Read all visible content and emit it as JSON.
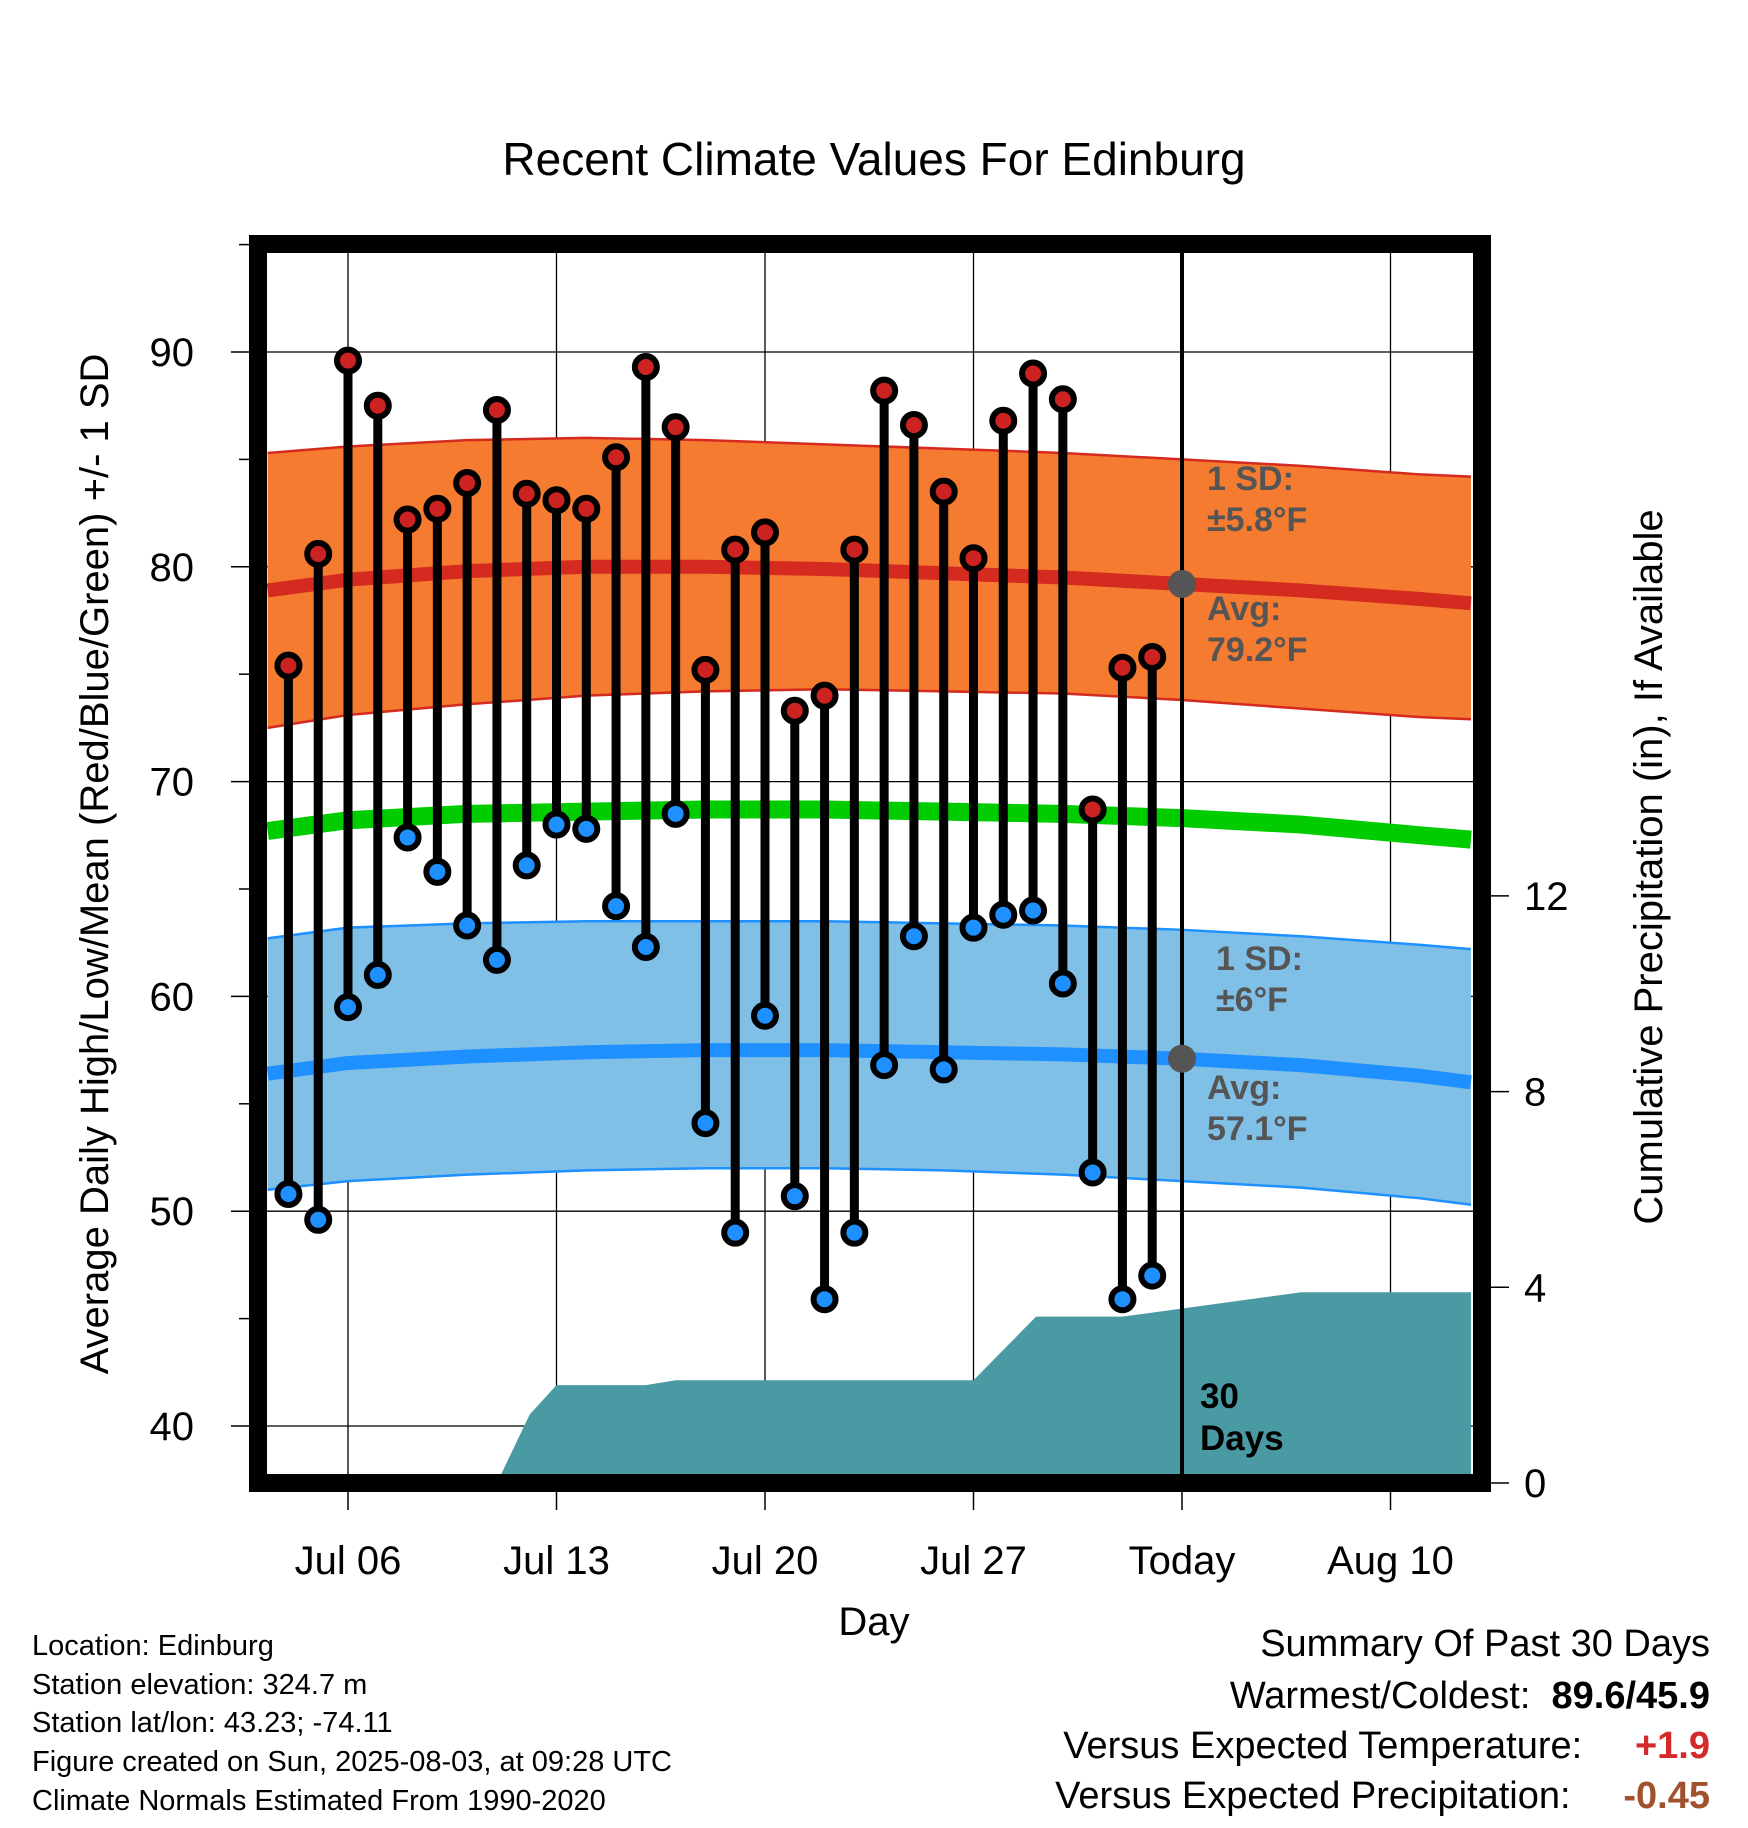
{
  "chart_data": {
    "type": "line",
    "title": "Recent Climate Values For Edinburg",
    "xlabel": "Day",
    "ylabel_left": "Average Daily High/Low/Mean (Red/Blue/Green) +/- 1 SD",
    "ylabel_right": "Cumulative Precipitation (in), If Available",
    "ylim_left": [
      38,
      95
    ],
    "ylim_right": [
      0,
      30
    ],
    "xlim": [
      -4.5,
      42
    ],
    "x_ticks": [
      {
        "day": 0,
        "label": "Jul 06"
      },
      {
        "day": 7,
        "label": "Jul 13"
      },
      {
        "day": 14,
        "label": "Jul 20"
      },
      {
        "day": 21,
        "label": "Jul 27"
      },
      {
        "day": 28,
        "label": "Today"
      },
      {
        "day": 35,
        "label": "Aug 10"
      }
    ],
    "y_ticks_left": [
      40,
      50,
      60,
      70,
      80,
      90
    ],
    "y_ticks_right": [
      0,
      4,
      8,
      12
    ],
    "grid": true,
    "today_day": 28,
    "today_label": "30 Days",
    "normals_x": [
      -2.7,
      0,
      4,
      8,
      12,
      16,
      20,
      24,
      28,
      32,
      36,
      37.7
    ],
    "normal_high_avg": [
      78.9,
      79.4,
      79.8,
      80.0,
      80.0,
      79.9,
      79.7,
      79.5,
      79.2,
      78.9,
      78.5,
      78.3
    ],
    "normal_high_upper": [
      85.3,
      85.6,
      85.9,
      86.0,
      85.9,
      85.7,
      85.5,
      85.3,
      85.0,
      84.7,
      84.3,
      84.2
    ],
    "normal_high_lower": [
      72.5,
      73.1,
      73.6,
      74.0,
      74.2,
      74.3,
      74.2,
      74.1,
      73.8,
      73.4,
      73.0,
      72.9
    ],
    "normal_mean": [
      67.7,
      68.2,
      68.5,
      68.6,
      68.7,
      68.7,
      68.6,
      68.5,
      68.3,
      68.0,
      67.5,
      67.3
    ],
    "normal_low_avg": [
      56.4,
      56.9,
      57.2,
      57.4,
      57.5,
      57.5,
      57.4,
      57.3,
      57.1,
      56.8,
      56.3,
      56.0
    ],
    "normal_low_upper": [
      62.7,
      63.2,
      63.4,
      63.5,
      63.5,
      63.5,
      63.4,
      63.3,
      63.1,
      62.8,
      62.4,
      62.2
    ],
    "normal_low_lower": [
      51.0,
      51.4,
      51.7,
      51.9,
      52.0,
      52.0,
      51.9,
      51.7,
      51.4,
      51.1,
      50.6,
      50.3
    ],
    "series": [
      {
        "name": "High",
        "color": "#cc2222",
        "values": [
          75.4,
          80.6,
          89.6,
          87.5,
          82.2,
          82.7,
          83.9,
          87.3,
          83.4,
          83.1,
          82.7,
          85.1,
          89.3,
          86.5,
          75.2,
          80.8,
          81.6,
          73.3,
          74.0,
          80.8,
          88.2,
          86.6,
          83.5,
          80.4,
          86.8,
          89.0,
          87.8,
          68.7,
          75.3,
          75.8
        ]
      },
      {
        "name": "Low",
        "color": "#1e90ff",
        "values": [
          50.8,
          49.6,
          59.5,
          61.0,
          67.4,
          65.8,
          63.3,
          61.7,
          66.1,
          68.0,
          67.8,
          64.2,
          62.3,
          68.5,
          54.1,
          49.0,
          59.1,
          50.7,
          45.9,
          49.0,
          56.8,
          62.8,
          56.6,
          63.2,
          63.8,
          64.0,
          60.6,
          51.8,
          45.9,
          47.0
        ]
      }
    ],
    "day_start": -2,
    "precip_x": [
      -2.7,
      1.7,
      5.0,
      6.1,
      7.0,
      8.0,
      10.0,
      11.0,
      14.0,
      17.0,
      21.0,
      23.1,
      26.0,
      32.0,
      36.0,
      37.7
    ],
    "precip_y": [
      0,
      0,
      0,
      1.4,
      2.0,
      2.0,
      2.0,
      2.1,
      2.1,
      2.1,
      2.1,
      3.4,
      3.4,
      3.9,
      3.9,
      3.9
    ],
    "annotations": {
      "high_sd": {
        "line1": "1 SD:",
        "line2": "±5.8°F"
      },
      "high_avg": {
        "line1": "Avg:",
        "line2": "79.2°F"
      },
      "low_sd": {
        "line1": "1 SD:",
        "line2": "±6°F"
      },
      "low_avg": {
        "line1": "Avg:",
        "line2": "57.1°F"
      }
    },
    "colors": {
      "high_band": "#f47b30",
      "high_line": "#d42a1f",
      "mean_line": "#00cc00",
      "low_band": "#80bfe6",
      "low_line": "#1e90ff",
      "precip": "#4a9aa3",
      "annotation": "#555555"
    }
  },
  "info": {
    "location": "Location: Edinburg",
    "elevation": "Station elevation: 324.7 m",
    "latlon": "Station lat/lon: 43.23; -74.11",
    "created": "Figure created on Sun, 2025-08-03, at 09:28 UTC",
    "normals": "Climate Normals Estimated From 1990-2020"
  },
  "summary": {
    "title": "Summary Of Past 30 Days",
    "warmest_label": "Warmest/Coldest:",
    "warmest_value": "89.6/45.9",
    "temp_label": "Versus Expected Temperature:",
    "temp_value": "+1.9",
    "temp_color": "#d42a2a",
    "precip_label": "Versus Expected Precipitation:",
    "precip_value": "-0.45",
    "precip_color": "#a0522d"
  }
}
